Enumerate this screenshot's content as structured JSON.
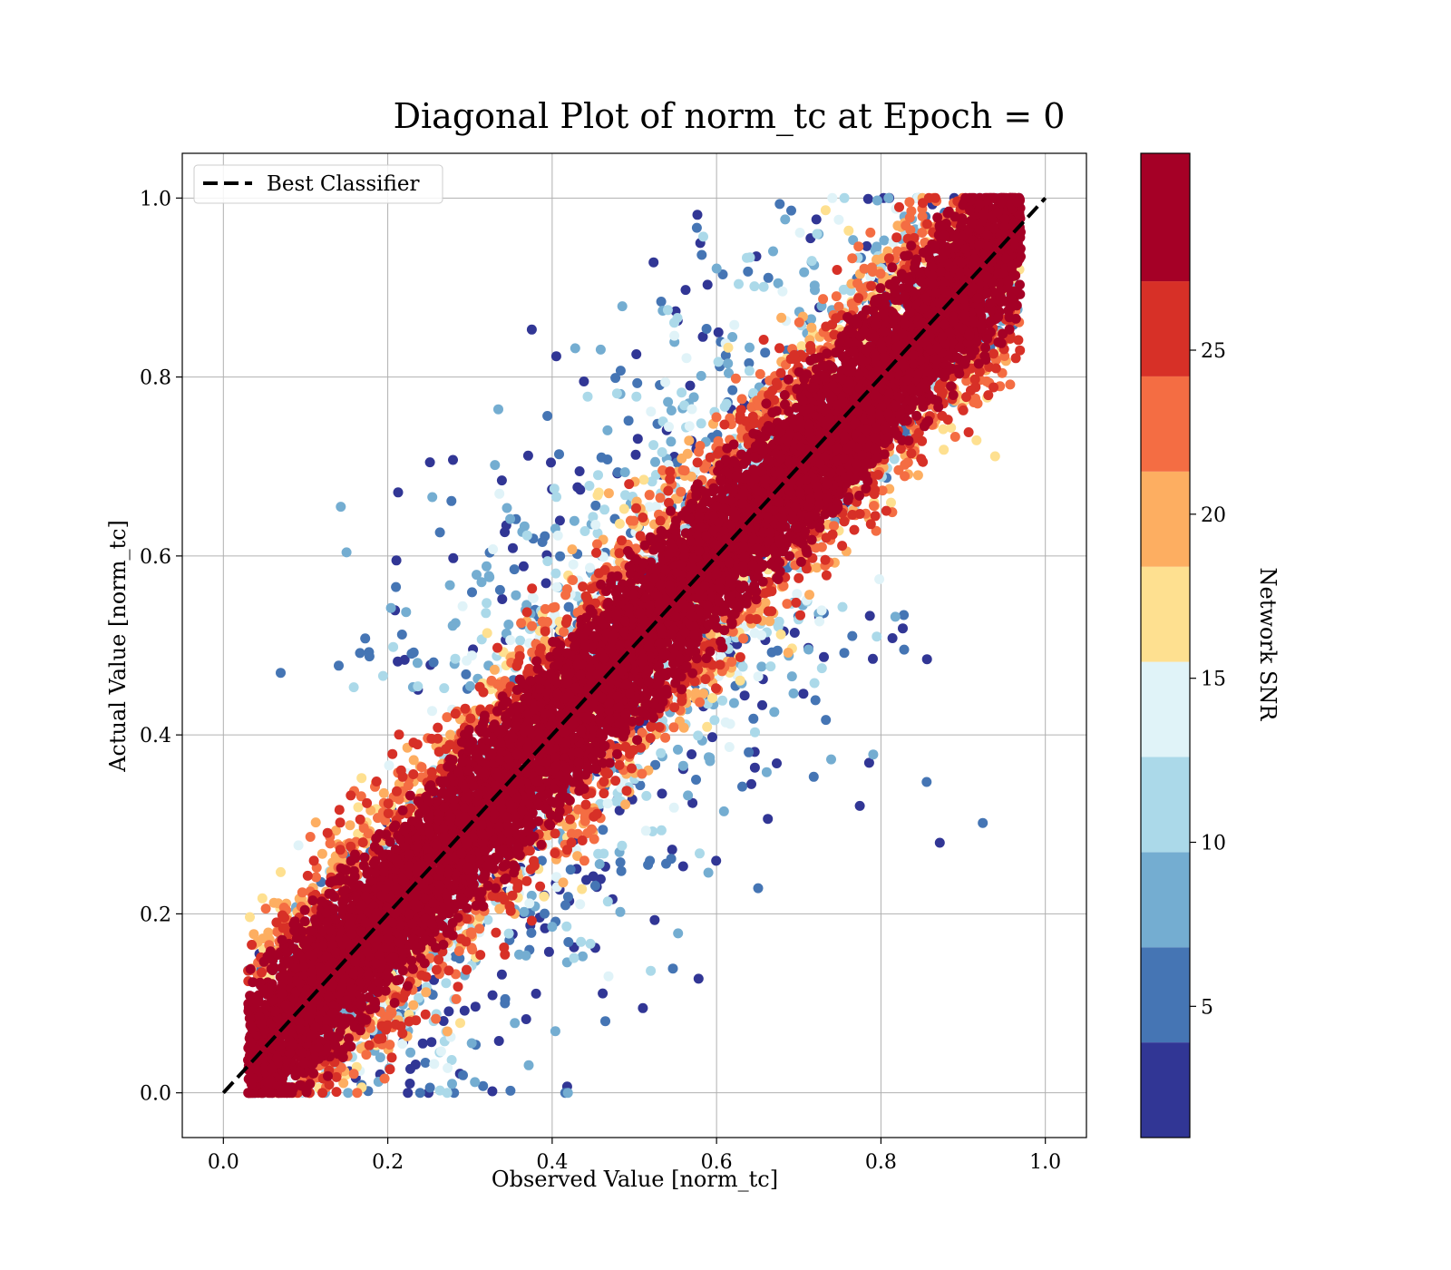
{
  "chart_data": {
    "type": "scatter",
    "title": "Diagonal Plot of norm_tc at Epoch = 0",
    "xlabel": "Observed Value [norm_tc]",
    "ylabel": "Actual Value [norm_tc]",
    "xlim": [
      -0.05,
      1.05
    ],
    "ylim": [
      -0.05,
      1.05
    ],
    "xticks": [
      0.0,
      0.2,
      0.4,
      0.6,
      0.8,
      1.0
    ],
    "yticks": [
      0.0,
      0.2,
      0.4,
      0.6,
      0.8,
      1.0
    ],
    "xtick_labels": [
      "0.0",
      "0.2",
      "0.4",
      "0.6",
      "0.8",
      "1.0"
    ],
    "ytick_labels": [
      "0.0",
      "0.2",
      "0.4",
      "0.6",
      "0.8",
      "1.0"
    ],
    "grid": true,
    "legend": {
      "placement": "top-left",
      "entries": [
        {
          "label": "Best Classifier",
          "style": "dashed",
          "color": "#000000"
        }
      ]
    },
    "reference_line": {
      "name": "Best Classifier",
      "x": [
        0.0,
        1.0
      ],
      "y": [
        0.0,
        1.0
      ],
      "style": "dashed",
      "color": "#000000"
    },
    "colorbar": {
      "label": "Network SNR",
      "range": [
        1,
        31
      ],
      "ticks": [
        5,
        10,
        15,
        20,
        25
      ],
      "tick_labels": [
        "5",
        "10",
        "15",
        "20",
        "25"
      ],
      "bins": [
        {
          "min": 1,
          "max": 3.9,
          "color": "#313695"
        },
        {
          "min": 3.9,
          "max": 6.8,
          "color": "#4575b4"
        },
        {
          "min": 6.8,
          "max": 9.7,
          "color": "#74add1"
        },
        {
          "min": 9.7,
          "max": 12.6,
          "color": "#abd9e9"
        },
        {
          "min": 12.6,
          "max": 15.5,
          "color": "#e0f3f8"
        },
        {
          "min": 15.5,
          "max": 18.4,
          "color": "#fee090"
        },
        {
          "min": 18.4,
          "max": 21.3,
          "color": "#fdae61"
        },
        {
          "min": 21.3,
          "max": 24.2,
          "color": "#f46d43"
        },
        {
          "min": 24.2,
          "max": 27.1,
          "color": "#d73027"
        },
        {
          "min": 27.1,
          "max": 31,
          "color": "#a50026"
        }
      ]
    },
    "scatter_summary": {
      "x_range": [
        0.03,
        0.97
      ],
      "y_range": [
        0.0,
        1.0
      ],
      "high_snr_band_halfwidth": 0.1,
      "low_snr_spread_halfwidth": 0.35
    }
  }
}
